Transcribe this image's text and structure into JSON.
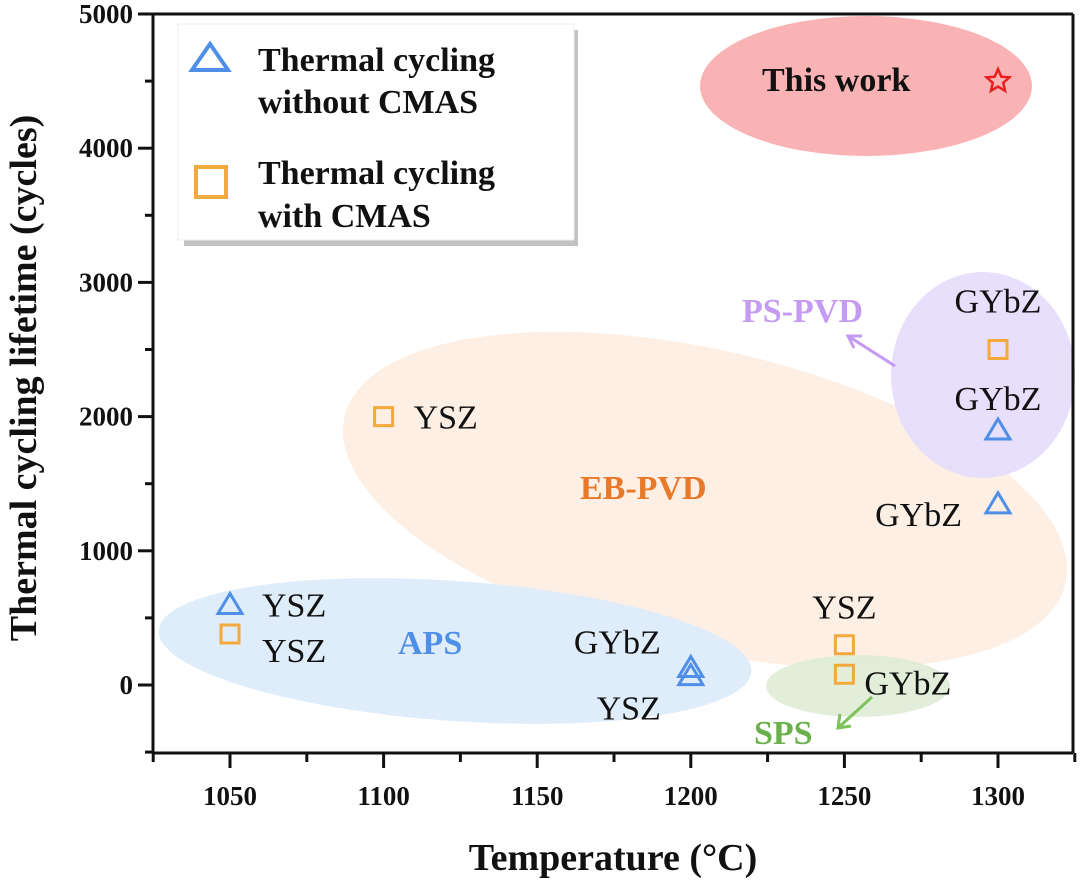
{
  "chart_data": {
    "type": "scatter",
    "title": "",
    "xlabel": "Temperature (°C)",
    "ylabel": "Thermal cycling lifetime (cycles)",
    "xlim": [
      1025,
      1325
    ],
    "ylim": [
      -500,
      5000
    ],
    "x_ticks": [
      "1050",
      "1100",
      "1150",
      "1200",
      "1250",
      "1300"
    ],
    "y_ticks": [
      "0",
      "1000",
      "2000",
      "3000",
      "4000",
      "5000"
    ],
    "x_tick_values": [
      1050,
      1100,
      1150,
      1200,
      1250,
      1300
    ],
    "y_tick_values": [
      0,
      1000,
      2000,
      3000,
      4000,
      5000
    ],
    "grid": false,
    "legend_position": "top-left",
    "colors": {
      "without_cmas": "#4f8fe8",
      "with_cmas": "#f3a93b",
      "this_work": "#e8201e",
      "aps_region": "#dcebfb",
      "ebpvd_region": "#fdefe4",
      "pspvd_region": "#e4dbfb",
      "sps_region": "#e2efd9",
      "this_work_region": "#f9b3b5",
      "aps_text": "#4f8fe8",
      "ebpvd_text": "#e8792a",
      "pspvd_text": "#c59af2",
      "sps_text": "#6ab04c"
    },
    "series": [
      {
        "name": "Thermal cycling without CMAS",
        "legend_label_lines": [
          "Thermal cycling",
          "without CMAS"
        ],
        "marker": "triangle",
        "points": [
          {
            "x": 1050,
            "y": 600,
            "label": "YSZ"
          },
          {
            "x": 1200,
            "y": 130,
            "label": "GYbZ"
          },
          {
            "x": 1200,
            "y": 70,
            "label": "YSZ"
          },
          {
            "x": 1300,
            "y": 1900,
            "label": "GYbZ"
          },
          {
            "x": 1300,
            "y": 1350,
            "label": "GYbZ"
          }
        ]
      },
      {
        "name": "Thermal cycling with CMAS",
        "legend_label_lines": [
          "Thermal cycling",
          "with CMAS"
        ],
        "marker": "square",
        "points": [
          {
            "x": 1050,
            "y": 380,
            "label": "YSZ"
          },
          {
            "x": 1100,
            "y": 2000,
            "label": "YSZ"
          },
          {
            "x": 1250,
            "y": 300,
            "label": "YSZ"
          },
          {
            "x": 1250,
            "y": 80,
            "label": "GYbZ"
          },
          {
            "x": 1300,
            "y": 2500,
            "label": "GYbZ"
          }
        ]
      },
      {
        "name": "This work",
        "marker": "star",
        "points": [
          {
            "x": 1300,
            "y": 4500,
            "label": "This work"
          }
        ]
      }
    ],
    "regions": [
      {
        "name": "APS",
        "label": "APS"
      },
      {
        "name": "EB-PVD",
        "label": "EB-PVD"
      },
      {
        "name": "PS-PVD",
        "label": "PS-PVD"
      },
      {
        "name": "SPS",
        "label": "SPS"
      },
      {
        "name": "This work",
        "label": "This work"
      }
    ]
  }
}
